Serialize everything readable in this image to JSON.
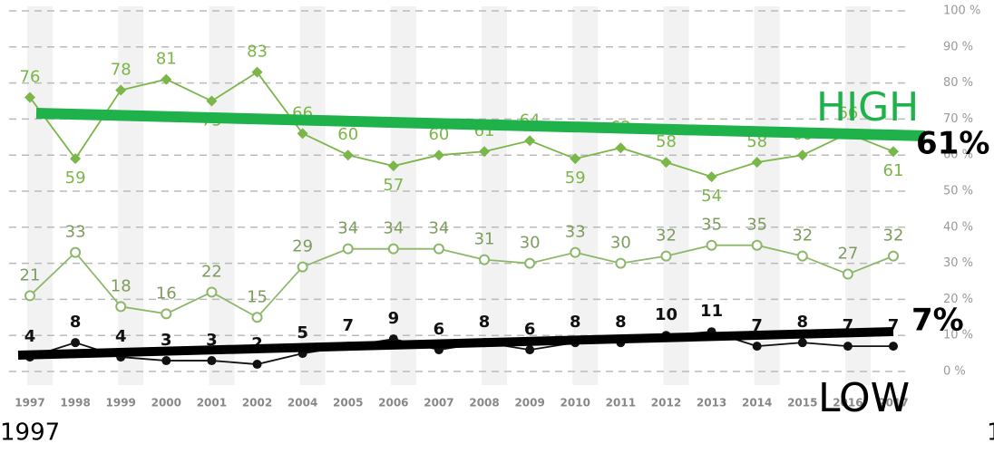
{
  "chart_data": {
    "type": "line",
    "categories": [
      "1997",
      "1998",
      "1999",
      "2000",
      "2001",
      "2002",
      "2004",
      "2005",
      "2006",
      "2007",
      "2008",
      "2009",
      "2010",
      "2011",
      "2012",
      "2013",
      "2014",
      "2015",
      "2016",
      "2017"
    ],
    "series": [
      {
        "color": "#7ab648",
        "marker": "diamond",
        "values": [
          76,
          59,
          78,
          81,
          75,
          83,
          66,
          60,
          57,
          60,
          61,
          64,
          59,
          62,
          58,
          54,
          58,
          60,
          66,
          61
        ]
      },
      {
        "color": "#8db86a",
        "marker": "hollow-circle",
        "values": [
          21,
          33,
          18,
          16,
          22,
          15,
          29,
          34,
          34,
          34,
          31,
          30,
          33,
          30,
          32,
          35,
          35,
          32,
          27,
          32
        ]
      },
      {
        "color": "#111111",
        "marker": "circle",
        "values": [
          4,
          8,
          4,
          3,
          3,
          2,
          5,
          7,
          9,
          6,
          8,
          6,
          8,
          8,
          10,
          11,
          7,
          8,
          7,
          7
        ]
      }
    ],
    "ylim": [
      0,
      100
    ],
    "yticks": [
      {
        "value": 0,
        "label": "0 %"
      },
      {
        "value": 10,
        "label": "10 %"
      },
      {
        "value": 20,
        "label": "20 %"
      },
      {
        "value": 30,
        "label": "30 %"
      },
      {
        "value": 40,
        "label": "40 %"
      },
      {
        "value": 50,
        "label": "50 %"
      },
      {
        "value": 60,
        "label": "60 %"
      },
      {
        "value": 70,
        "label": "70 %"
      },
      {
        "value": 80,
        "label": "80 %"
      },
      {
        "value": 90,
        "label": "90 %"
      },
      {
        "value": 100,
        "label": "100 %"
      }
    ],
    "grid": true,
    "annotations": {
      "high": "HIGH",
      "high_value": "61%",
      "low_value": "7%",
      "low": "LOW",
      "start_year": "1997",
      "end_year": "1"
    }
  }
}
